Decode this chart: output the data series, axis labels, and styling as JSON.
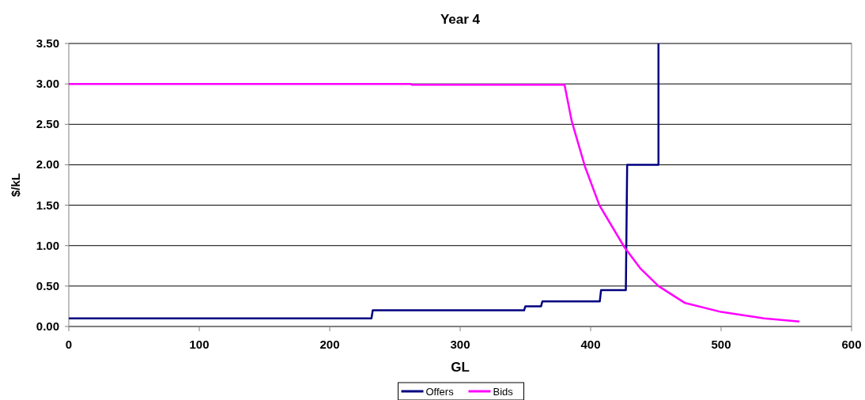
{
  "chart_data": {
    "type": "line",
    "title": "Year 4",
    "xlabel": "GL",
    "ylabel": "$/kL",
    "xlim": [
      0,
      600
    ],
    "xticks": [
      0,
      100,
      200,
      300,
      400,
      500,
      600
    ],
    "ylim": [
      0,
      3.5
    ],
    "yticks": [
      {
        "value": 0,
        "label": "0.00"
      },
      {
        "value": 0.5,
        "label": "0.50"
      },
      {
        "value": 1,
        "label": "1.00"
      },
      {
        "value": 1.5,
        "label": "1.50"
      },
      {
        "value": 2,
        "label": "2.00"
      },
      {
        "value": 2.5,
        "label": "2.50"
      },
      {
        "value": 3,
        "label": "3.00"
      },
      {
        "value": 3.5,
        "label": "3.50"
      }
    ],
    "grid": "y",
    "legend": "bottom",
    "marker": "none",
    "line_style": "solid",
    "series": [
      {
        "name": "Offers",
        "color": "#000080",
        "x": [
          0,
          232,
          233,
          349,
          350,
          362,
          363,
          407,
          408,
          427,
          428,
          452,
          452
        ],
        "values": [
          0.1,
          0.1,
          0.2,
          0.2,
          0.25,
          0.25,
          0.31,
          0.31,
          0.45,
          0.45,
          2.0,
          2.0,
          3.5
        ]
      },
      {
        "name": "Bids",
        "color": "#ff00ff",
        "x": [
          0,
          262,
          263,
          380,
          385.5,
          395.6,
          406.7,
          425.9,
          438,
          452,
          472.4,
          500,
          533,
          560
        ],
        "values": [
          3.0,
          3.0,
          2.99,
          2.99,
          2.54,
          1.98,
          1.5,
          0.98,
          0.72,
          0.5,
          0.29,
          0.18,
          0.1,
          0.06
        ]
      }
    ]
  }
}
